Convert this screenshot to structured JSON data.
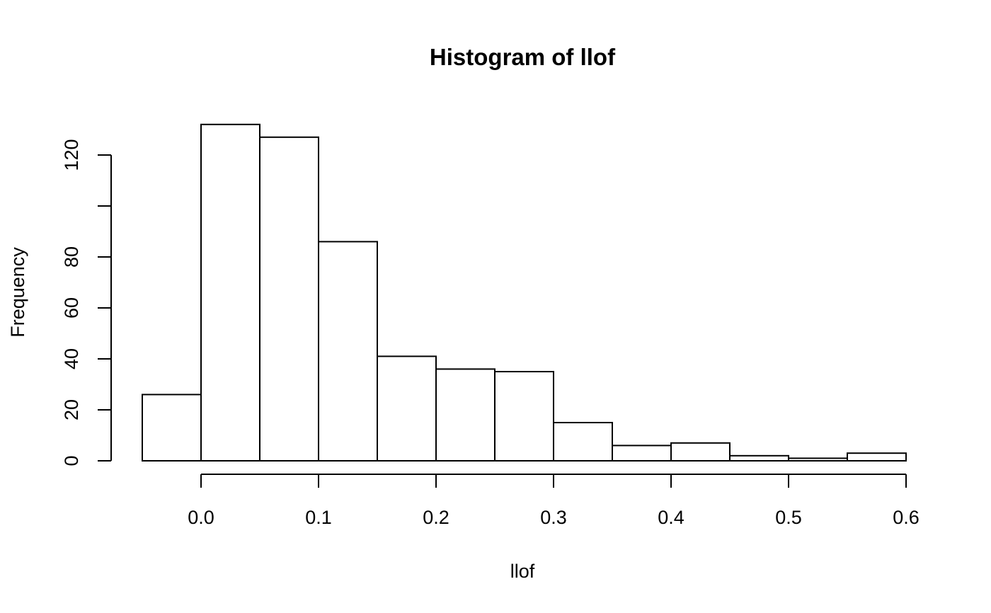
{
  "chart_data": {
    "type": "bar",
    "title": "Histogram of llof",
    "xlabel": "llof",
    "ylabel": "Frequency",
    "bins": [
      {
        "from": -0.05,
        "to": 0.0,
        "count": 26
      },
      {
        "from": 0.0,
        "to": 0.05,
        "count": 132
      },
      {
        "from": 0.05,
        "to": 0.1,
        "count": 127
      },
      {
        "from": 0.1,
        "to": 0.15,
        "count": 86
      },
      {
        "from": 0.15,
        "to": 0.2,
        "count": 41
      },
      {
        "from": 0.2,
        "to": 0.25,
        "count": 36
      },
      {
        "from": 0.25,
        "to": 0.3,
        "count": 35
      },
      {
        "from": 0.3,
        "to": 0.35,
        "count": 15
      },
      {
        "from": 0.35,
        "to": 0.4,
        "count": 6
      },
      {
        "from": 0.4,
        "to": 0.45,
        "count": 7
      },
      {
        "from": 0.45,
        "to": 0.5,
        "count": 2
      },
      {
        "from": 0.5,
        "to": 0.55,
        "count": 1
      },
      {
        "from": 0.55,
        "to": 0.6,
        "count": 3
      }
    ],
    "x_ticks": [
      {
        "value": 0.0,
        "label": "0.0"
      },
      {
        "value": 0.1,
        "label": "0.1"
      },
      {
        "value": 0.2,
        "label": "0.2"
      },
      {
        "value": 0.3,
        "label": "0.3"
      },
      {
        "value": 0.4,
        "label": "0.4"
      },
      {
        "value": 0.5,
        "label": "0.5"
      },
      {
        "value": 0.6,
        "label": "0.6"
      }
    ],
    "y_ticks": [
      {
        "value": 0,
        "label": "0"
      },
      {
        "value": 20,
        "label": "20"
      },
      {
        "value": 40,
        "label": "40"
      },
      {
        "value": 60,
        "label": "60"
      },
      {
        "value": 80,
        "label": "80"
      },
      {
        "value": 100,
        "label": ""
      },
      {
        "value": 120,
        "label": "120"
      }
    ],
    "xlim": [
      -0.05,
      0.6
    ],
    "ylim": [
      0,
      132
    ],
    "grid": false,
    "legend": "none",
    "colors": {
      "bar_fill": "#ffffff",
      "bar_stroke": "#000000"
    }
  }
}
